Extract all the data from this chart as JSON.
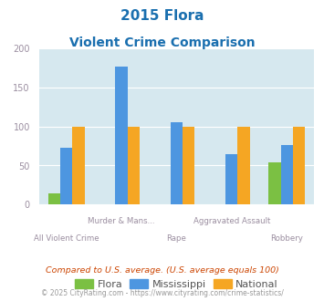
{
  "title_line1": "2015 Flora",
  "title_line2": "Violent Crime Comparison",
  "groups": [
    {
      "label_top": "",
      "label_bot": "All Violent Crime",
      "flora": 15,
      "mississippi": 73,
      "national": 100
    },
    {
      "label_top": "Murder & Mans...",
      "label_bot": "",
      "flora": 0,
      "mississippi": 177,
      "national": 100
    },
    {
      "label_top": "",
      "label_bot": "Rape",
      "flora": 0,
      "mississippi": 105,
      "national": 100
    },
    {
      "label_top": "Aggravated Assault",
      "label_bot": "",
      "flora": 0,
      "mississippi": 65,
      "national": 100
    },
    {
      "label_top": "",
      "label_bot": "Robbery",
      "flora": 54,
      "mississippi": 76,
      "national": 100
    }
  ],
  "flora_color": "#7bc043",
  "mississippi_color": "#4d96e0",
  "national_color": "#f5a623",
  "ylim": [
    0,
    200
  ],
  "yticks": [
    0,
    50,
    100,
    150,
    200
  ],
  "bg_color": "#d6e8ef",
  "title_color": "#1a6faf",
  "axis_label_color": "#9b8ea0",
  "legend_labels": [
    "Flora",
    "Mississippi",
    "National"
  ],
  "footnote1": "Compared to U.S. average. (U.S. average equals 100)",
  "footnote2": "© 2025 CityRating.com - https://www.cityrating.com/crime-statistics/",
  "footnote1_color": "#cc4400",
  "footnote2_color": "#999999"
}
